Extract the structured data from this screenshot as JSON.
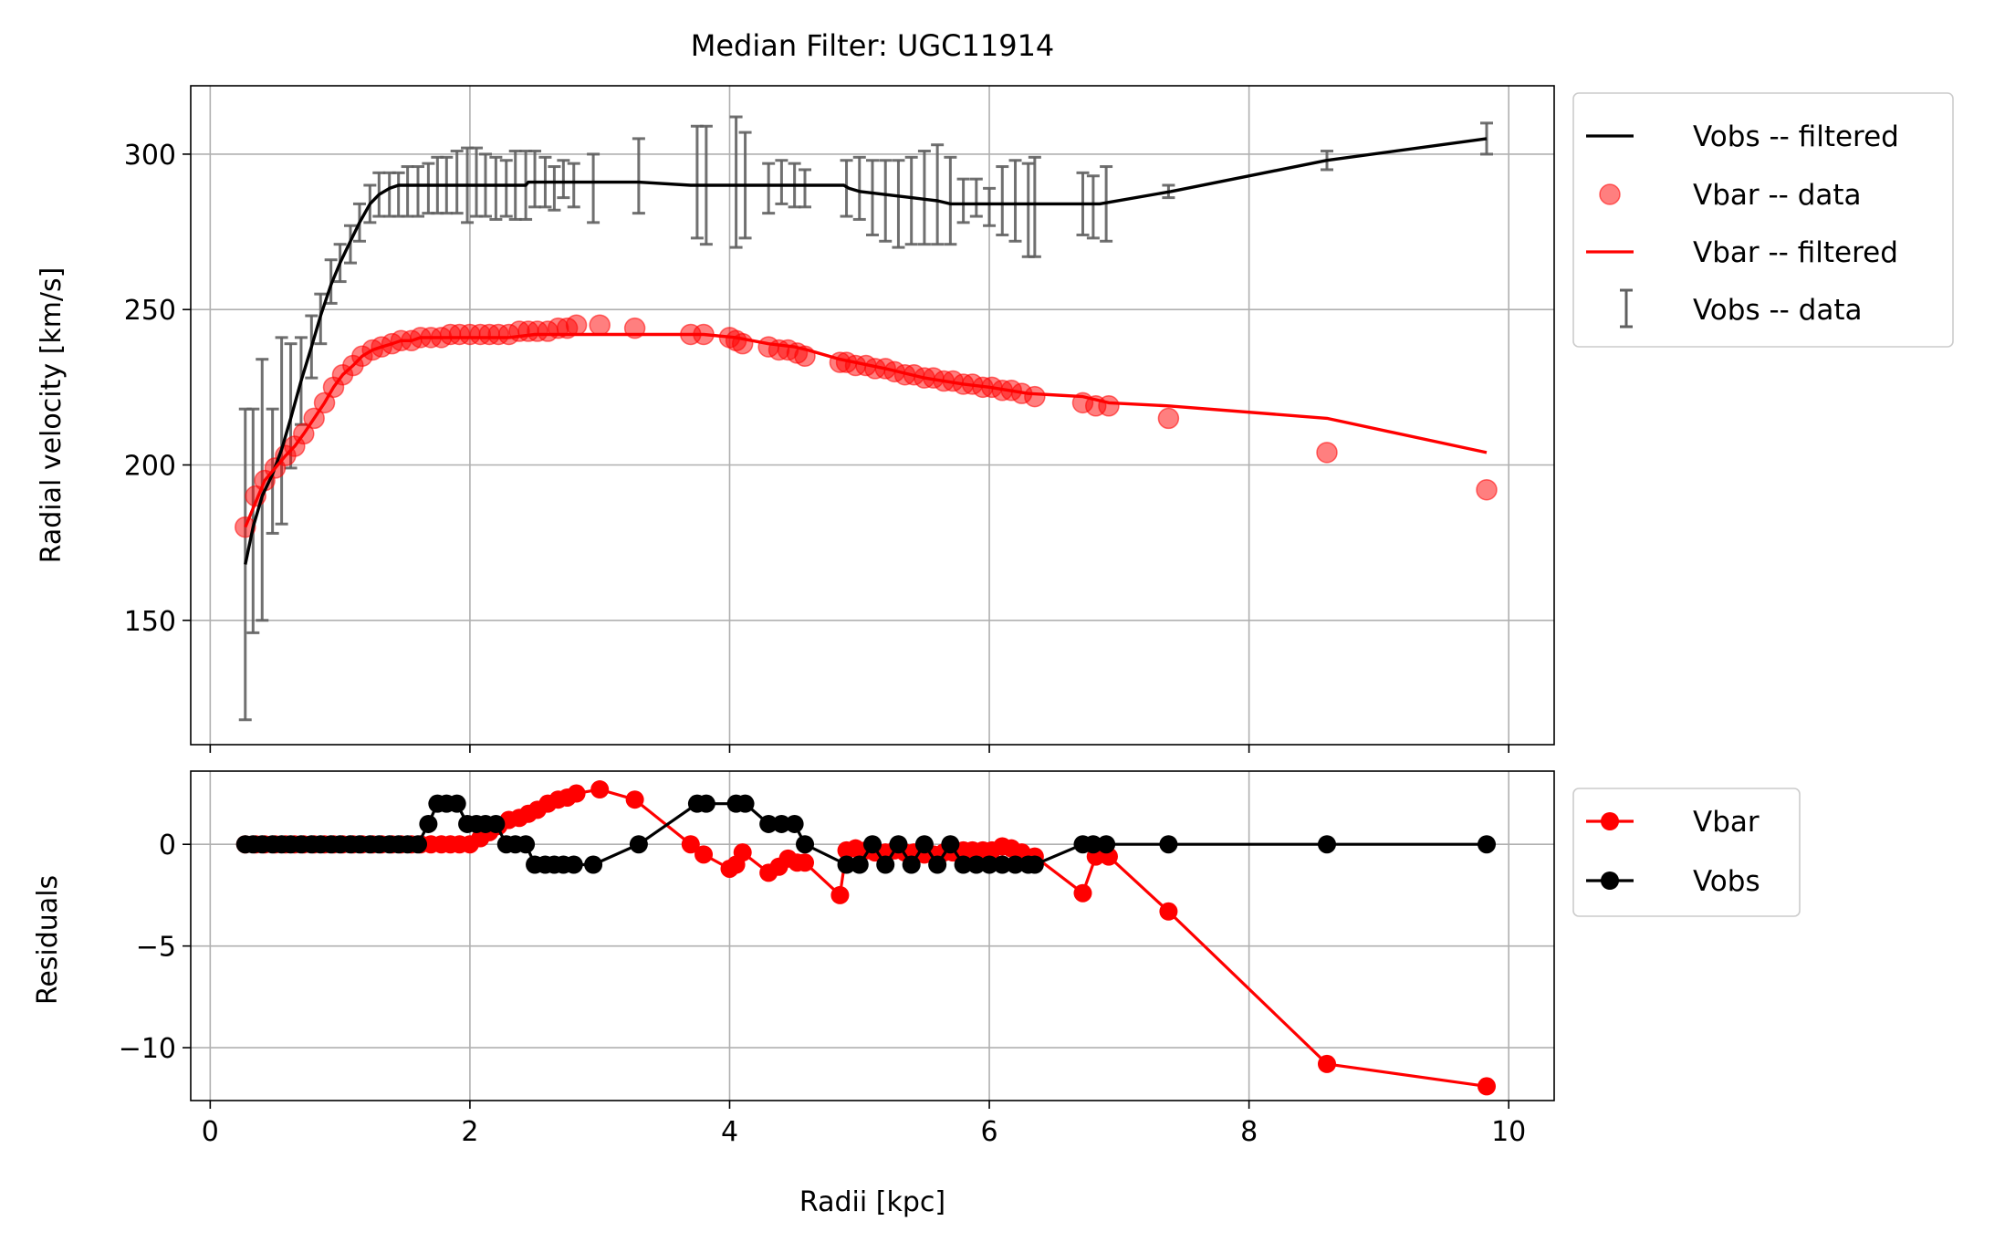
{
  "chart_data": [
    {
      "type": "line",
      "title": "Median Filter: UGC11914",
      "xlabel": "",
      "ylabel": "Radial velocity [km/s]",
      "xlim": [
        -0.15,
        10.35
      ],
      "ylim": [
        110,
        322
      ],
      "xticks": [
        0,
        2,
        4,
        6,
        8,
        10
      ],
      "show_x_ticklabels": false,
      "yticks": [
        150,
        200,
        250,
        300
      ],
      "grid": true,
      "legend_position": "outside-top-right",
      "legend": [
        "Vobs -- filtered",
        "Vbar -- data",
        "Vbar -- filtered",
        "Vobs -- data"
      ],
      "colors": {
        "vobs": "#000000",
        "vbar": "#ff0000",
        "errorbar": "#606060",
        "grid": "#b0b0b0"
      },
      "series": [
        {
          "name": "Vobs -- filtered",
          "kind": "line",
          "color": "#000000",
          "x": [
            0.27,
            0.33,
            0.4,
            0.48,
            0.55,
            0.62,
            0.7,
            0.78,
            0.85,
            0.93,
            1.0,
            1.08,
            1.15,
            1.23,
            1.3,
            1.38,
            1.45,
            1.52,
            1.6,
            1.7,
            1.8,
            2.0,
            2.2,
            2.43,
            2.45,
            2.7,
            3.0,
            3.3,
            3.7,
            4.0,
            4.3,
            4.6,
            4.88,
            4.92,
            5.0,
            5.2,
            5.4,
            5.6,
            5.7,
            6.0,
            6.3,
            6.7,
            6.85,
            7.4,
            8.6,
            9.83
          ],
          "y": [
            168,
            180,
            190,
            197,
            205,
            215,
            227,
            238,
            248,
            258,
            265,
            272,
            278,
            284,
            287,
            289,
            290,
            290,
            290,
            290,
            290,
            290,
            290,
            290,
            291,
            291,
            291,
            291,
            290,
            290,
            290,
            290,
            290,
            289,
            288,
            287,
            286,
            285,
            284,
            284,
            284,
            284,
            284,
            288,
            298,
            305
          ]
        },
        {
          "name": "Vobs -- data",
          "kind": "errorbar",
          "color": "#606060",
          "x": [
            0.27,
            0.33,
            0.4,
            0.48,
            0.55,
            0.62,
            0.7,
            0.78,
            0.85,
            0.93,
            1.0,
            1.08,
            1.15,
            1.23,
            1.3,
            1.38,
            1.45,
            1.52,
            1.6,
            1.68,
            1.75,
            1.82,
            1.9,
            1.98,
            2.05,
            2.12,
            2.2,
            2.28,
            2.35,
            2.43,
            2.5,
            2.58,
            2.65,
            2.72,
            2.8,
            2.95,
            3.3,
            3.75,
            3.82,
            4.05,
            4.12,
            4.3,
            4.4,
            4.5,
            4.58,
            4.9,
            5.0,
            5.1,
            5.2,
            5.3,
            5.4,
            5.5,
            5.6,
            5.7,
            5.8,
            5.9,
            6.0,
            6.1,
            6.2,
            6.3,
            6.35,
            6.72,
            6.8,
            6.9,
            7.38,
            8.6,
            9.83
          ],
          "y": [
            168,
            182,
            192,
            198,
            211,
            219,
            227,
            238,
            247,
            259,
            265,
            271,
            278,
            284,
            287,
            287,
            287,
            288,
            288,
            289,
            290,
            290,
            291,
            290,
            291,
            290,
            289,
            289,
            290,
            290,
            292,
            291,
            289,
            292,
            290,
            289,
            293,
            291,
            290,
            291,
            290,
            289,
            291,
            290,
            289,
            289,
            289,
            286,
            285,
            284,
            285,
            286,
            287,
            285,
            285,
            286,
            283,
            285,
            285,
            282,
            283,
            284,
            283,
            284,
            288,
            298,
            305
          ],
          "err": [
            50,
            36,
            42,
            20,
            30,
            20,
            14,
            10,
            8,
            7,
            6,
            6,
            6,
            6,
            7,
            7,
            7,
            8,
            8,
            8,
            9,
            9,
            10,
            12,
            11,
            10,
            10,
            9,
            11,
            11,
            9,
            8,
            7,
            6,
            7,
            11,
            12,
            18,
            19,
            21,
            17,
            8,
            7,
            7,
            6,
            9,
            10,
            12,
            13,
            14,
            14,
            15,
            16,
            14,
            7,
            6,
            6,
            11,
            13,
            15,
            16,
            10,
            10,
            12,
            2,
            3,
            5
          ]
        },
        {
          "name": "Vbar -- data",
          "kind": "scatter",
          "color": "#ff0000",
          "x": [
            0.27,
            0.35,
            0.42,
            0.5,
            0.58,
            0.65,
            0.72,
            0.8,
            0.88,
            0.95,
            1.02,
            1.1,
            1.17,
            1.25,
            1.32,
            1.4,
            1.47,
            1.55,
            1.62,
            1.7,
            1.78,
            1.85,
            1.92,
            2.0,
            2.08,
            2.15,
            2.22,
            2.3,
            2.38,
            2.45,
            2.52,
            2.6,
            2.68,
            2.75,
            2.82,
            3.0,
            3.27,
            3.7,
            3.8,
            4.0,
            4.05,
            4.1,
            4.3,
            4.38,
            4.45,
            4.52,
            4.58,
            4.85,
            4.9,
            4.97,
            5.05,
            5.12,
            5.2,
            5.27,
            5.35,
            5.42,
            5.5,
            5.57,
            5.65,
            5.72,
            5.8,
            5.87,
            5.95,
            6.02,
            6.1,
            6.17,
            6.25,
            6.35,
            6.72,
            6.82,
            6.92,
            7.38,
            8.6,
            9.83
          ],
          "y": [
            180,
            190,
            195,
            199,
            203,
            206,
            210,
            215,
            220,
            225,
            229,
            232,
            235,
            237,
            238,
            239,
            240,
            240,
            241,
            241,
            241,
            242,
            242,
            242,
            242,
            242,
            242,
            242,
            243,
            243,
            243,
            243,
            244,
            244,
            245,
            245,
            244,
            242,
            242,
            241,
            240,
            239,
            238,
            237,
            237,
            236,
            235,
            233,
            233,
            232,
            232,
            231,
            231,
            230,
            229,
            229,
            228,
            228,
            227,
            227,
            226,
            226,
            225,
            225,
            224,
            224,
            223,
            222,
            220,
            219,
            219,
            215,
            204,
            192
          ]
        },
        {
          "name": "Vbar -- filtered",
          "kind": "line",
          "color": "#ff0000",
          "x": [
            0.27,
            0.35,
            0.42,
            0.5,
            0.58,
            0.65,
            0.72,
            0.8,
            0.88,
            0.95,
            1.02,
            1.1,
            1.17,
            1.25,
            1.32,
            1.4,
            1.47,
            1.55,
            1.62,
            1.7,
            1.85,
            2.0,
            2.3,
            2.5,
            2.75,
            3.0,
            3.5,
            3.8,
            4.05,
            4.3,
            4.5,
            4.6,
            4.85,
            5.2,
            5.5,
            5.8,
            6.0,
            6.3,
            6.72,
            6.92,
            7.38,
            8.6,
            9.83
          ],
          "y": [
            180,
            188,
            195,
            199,
            203,
            206,
            210,
            215,
            220,
            225,
            229,
            232,
            235,
            237,
            238,
            239,
            240,
            240,
            241,
            241,
            241,
            241,
            241,
            242,
            242,
            242,
            242,
            242,
            241,
            239,
            238,
            237,
            234,
            231,
            228,
            226,
            225,
            223,
            222,
            220,
            219,
            215,
            204
          ]
        }
      ]
    },
    {
      "type": "line",
      "title": "",
      "xlabel": "Radii [kpc]",
      "ylabel": "Residuals",
      "xlim": [
        -0.15,
        10.35
      ],
      "ylim": [
        -12.6,
        3.6
      ],
      "xticks": [
        0,
        2,
        4,
        6,
        8,
        10
      ],
      "yticks": [
        -10,
        -5,
        0
      ],
      "ytick_labels": [
        "−10",
        "−5",
        "0"
      ],
      "grid": true,
      "legend_position": "outside-top-right",
      "legend": [
        "Vbar",
        "Vobs"
      ],
      "series": [
        {
          "name": "Vbar",
          "kind": "line-marker",
          "color": "#ff0000",
          "x": [
            0.27,
            0.35,
            0.42,
            0.5,
            0.58,
            0.65,
            0.72,
            0.8,
            0.88,
            0.95,
            1.02,
            1.1,
            1.17,
            1.25,
            1.32,
            1.4,
            1.47,
            1.55,
            1.62,
            1.7,
            1.78,
            1.85,
            1.92,
            2.0,
            2.08,
            2.15,
            2.22,
            2.3,
            2.38,
            2.45,
            2.52,
            2.6,
            2.68,
            2.75,
            2.82,
            3.0,
            3.27,
            3.7,
            3.8,
            4.0,
            4.05,
            4.1,
            4.3,
            4.38,
            4.45,
            4.52,
            4.58,
            4.85,
            4.9,
            4.97,
            5.05,
            5.12,
            5.2,
            5.27,
            5.35,
            5.42,
            5.5,
            5.57,
            5.65,
            5.72,
            5.8,
            5.87,
            5.95,
            6.02,
            6.1,
            6.17,
            6.25,
            6.35,
            6.72,
            6.82,
            6.92,
            7.38,
            8.6,
            9.83
          ],
          "y": [
            0,
            0,
            0,
            0,
            0,
            0,
            0,
            0,
            0,
            0,
            0,
            0,
            0,
            0,
            0,
            0,
            0,
            0,
            0,
            0,
            0,
            0,
            0,
            0,
            0.3,
            0.6,
            0.9,
            1.2,
            1.3,
            1.5,
            1.7,
            2.0,
            2.2,
            2.3,
            2.5,
            2.7,
            2.2,
            0,
            -0.5,
            -1.2,
            -1.0,
            -0.4,
            -1.4,
            -1.1,
            -0.7,
            -0.9,
            -0.9,
            -2.5,
            -0.3,
            -0.2,
            -0.3,
            -0.4,
            -0.4,
            -0.3,
            -0.4,
            -0.4,
            -0.5,
            -0.5,
            -0.4,
            -0.4,
            -0.3,
            -0.3,
            -0.3,
            -0.3,
            -0.1,
            -0.2,
            -0.4,
            -0.6,
            -2.4,
            -0.6,
            -0.6,
            -3.3,
            -10.8,
            -11.9
          ]
        },
        {
          "name": "Vobs",
          "kind": "line-marker",
          "color": "#000000",
          "x": [
            0.27,
            0.33,
            0.4,
            0.48,
            0.55,
            0.62,
            0.7,
            0.78,
            0.85,
            0.93,
            1.0,
            1.08,
            1.15,
            1.23,
            1.3,
            1.38,
            1.45,
            1.52,
            1.6,
            1.68,
            1.75,
            1.82,
            1.9,
            1.98,
            2.05,
            2.12,
            2.2,
            2.28,
            2.35,
            2.43,
            2.5,
            2.58,
            2.65,
            2.72,
            2.8,
            2.95,
            3.3,
            3.75,
            3.82,
            4.05,
            4.12,
            4.3,
            4.4,
            4.5,
            4.58,
            4.9,
            5.0,
            5.1,
            5.2,
            5.3,
            5.4,
            5.5,
            5.6,
            5.7,
            5.8,
            5.9,
            6.0,
            6.1,
            6.2,
            6.3,
            6.35,
            6.72,
            6.8,
            6.9,
            7.38,
            8.6,
            9.83
          ],
          "y": [
            0,
            0,
            0,
            0,
            0,
            0,
            0,
            0,
            0,
            0,
            0,
            0,
            0,
            0,
            0,
            0,
            0,
            0,
            0,
            1,
            2,
            2,
            2,
            1,
            1,
            1,
            1,
            0,
            0,
            0,
            -1,
            -1,
            -1,
            -1,
            -1,
            -1,
            0,
            2,
            2,
            2,
            2,
            1,
            1,
            1,
            0,
            -1,
            -1,
            0,
            -1,
            0,
            -1,
            0,
            -1,
            0,
            -1,
            -1,
            -1,
            -1,
            -1,
            -1,
            -1,
            0,
            0,
            0,
            0,
            0,
            0
          ]
        }
      ]
    }
  ]
}
